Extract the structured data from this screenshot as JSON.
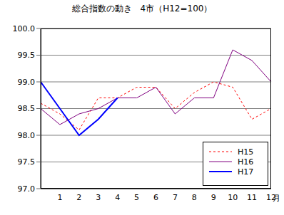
{
  "chart_data": {
    "type": "line",
    "title": "総合指数の動き　4市（H12=100）",
    "xlabel": "月",
    "categories": [
      null,
      "1",
      "2",
      "3",
      "4",
      "5",
      "6",
      "7",
      "8",
      "9",
      "10",
      "11",
      "12"
    ],
    "series": [
      {
        "name": "H15",
        "color": "#ff0000",
        "line_style": "dotted",
        "values": [
          98.6,
          98.4,
          98.1,
          98.7,
          98.7,
          98.9,
          98.9,
          98.5,
          98.8,
          99.0,
          98.9,
          98.3,
          98.5
        ]
      },
      {
        "name": "H16",
        "color": "#800080",
        "line_style": "solid",
        "values": [
          98.5,
          98.2,
          98.4,
          98.5,
          98.7,
          98.7,
          98.9,
          98.4,
          98.7,
          98.7,
          99.6,
          99.4,
          99.0
        ]
      },
      {
        "name": "H17",
        "color": "#0000ff",
        "line_style": "solid",
        "values": [
          99.0,
          98.5,
          98.0,
          98.3,
          98.7,
          null,
          null,
          null,
          null,
          null,
          null,
          null,
          null
        ]
      }
    ],
    "ylim": [
      97.0,
      100.0
    ],
    "yticks": [
      {
        "value": 97,
        "label": "97.0"
      },
      97.5,
      {
        "value": 98,
        "label": "98.0"
      },
      98.5,
      {
        "value": 99,
        "label": "99.0"
      },
      99.5,
      {
        "value": 100,
        "label": "100.0"
      }
    ],
    "grid": true,
    "legend": "lower right"
  }
}
